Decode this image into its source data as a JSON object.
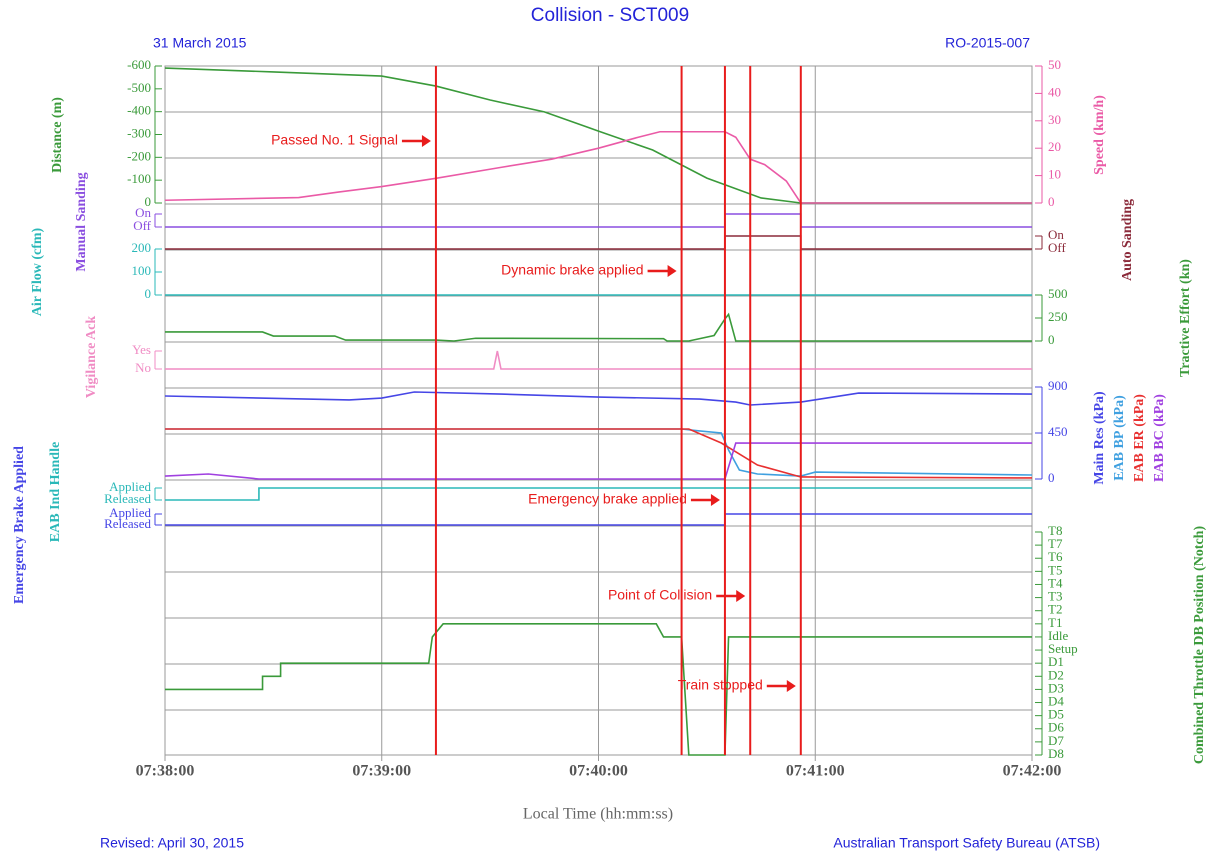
{
  "chart_data": {
    "type": "line",
    "title": "Collision - SCT009",
    "date": "31 March 2015",
    "report_id": "RO-2015-007",
    "xlabel": "Local Time (hh:mm:ss)",
    "footer_left": "Revised: April 30, 2015",
    "footer_right": "Australian Transport Safety Bureau (ATSB)",
    "grid": true,
    "xlim": [
      27480,
      27720
    ],
    "xticks": [
      {
        "value": 27480,
        "label": "07:38:00"
      },
      {
        "value": 27540,
        "label": "07:39:00"
      },
      {
        "value": 27600,
        "label": "07:40:00"
      },
      {
        "value": 27660,
        "label": "07:41:00"
      },
      {
        "value": 27720,
        "label": "07:42:00"
      }
    ],
    "event_color": "#e81c1c",
    "events": [
      {
        "x": 27555,
        "label": "Passed No. 1 Signal"
      },
      {
        "x": 27623,
        "label": "Dynamic brake applied"
      },
      {
        "x": 27635,
        "label": "Emergency brake applied"
      },
      {
        "x": 27642,
        "label": "Point of Collision"
      },
      {
        "x": 27656,
        "label": "Train stopped"
      }
    ],
    "panels": [
      {
        "ylabel": "Distance (m)",
        "ylim": [
          0,
          -600
        ],
        "yticks": [
          -600,
          -500,
          -400,
          -300,
          -200,
          -100,
          0
        ],
        "y2label": "Speed (km/h)",
        "y2lim": [
          0,
          50
        ],
        "y2ticks": [
          0,
          10,
          20,
          30,
          40,
          50
        ],
        "series": [
          {
            "color": "#3a9a3a",
            "x": [
              27480,
              27510,
              27540,
              27555,
              27570,
              27585,
              27600,
              27615,
              27630,
              27645,
              27656,
              27720
            ],
            "values": [
              -591,
              -574,
              -556,
              -512,
              -451,
              -399,
              -315,
              -232,
              -109,
              -22,
              0,
              0
            ]
          },
          {
            "color": "#ea5aa6",
            "axis": "y2",
            "x": [
              27480,
              27517,
              27528,
              27540,
              27555,
              27573,
              27587,
              27600,
              27611,
              27617,
              27635,
              27638,
              27642,
              27646,
              27652,
              27656,
              27720
            ],
            "values": [
              1,
              2,
              4,
              6,
              9,
              13,
              16,
              20,
              24,
              26,
              26,
              24,
              16,
              14,
              8,
              0,
              0
            ]
          }
        ]
      },
      {
        "ylabel": "Manual Sanding",
        "ylim": [
          0,
          1
        ],
        "yticks": [
          {
            "value": 1,
            "label": "On"
          },
          {
            "value": 0,
            "label": "Off"
          }
        ],
        "series": [
          {
            "color": "#8a4ee0",
            "x": [
              27480,
              27635,
              27635,
              27656,
              27656,
              27720
            ],
            "values": [
              0,
              0,
              1,
              1,
              0,
              0
            ]
          }
        ]
      },
      {
        "y2label": "Auto Sanding",
        "y2lim": [
          0,
          1
        ],
        "y2ticks": [
          {
            "value": 1,
            "label": "On"
          },
          {
            "value": 0,
            "label": "Off"
          }
        ],
        "series": [
          {
            "color": "#8b2a3a",
            "axis": "y2",
            "x": [
              27480,
              27635,
              27635,
              27656,
              27656,
              27720
            ],
            "values": [
              0,
              0,
              1,
              1,
              0,
              0
            ]
          }
        ]
      },
      {
        "ylabel": "Air Flow (cfm)",
        "ylim": [
          0,
          200
        ],
        "yticks": [
          0,
          100,
          200
        ],
        "series": [
          {
            "color": "#2ab8b8",
            "x": [
              27480,
              27720
            ],
            "values": [
              0,
              0
            ]
          }
        ]
      },
      {
        "y2label": "Tractive Effort (kn)",
        "y2lim": [
          0,
          500
        ],
        "y2ticks": [
          0,
          250,
          500
        ],
        "series": [
          {
            "color": "#3a9a3a",
            "axis": "y2",
            "x": [
              27480,
              27507,
              27510,
              27527,
              27530,
              27555,
              27560,
              27566,
              27618,
              27619,
              27625,
              27632,
              27635,
              27636,
              27638,
              27720
            ],
            "values": [
              98,
              98,
              54,
              54,
              10,
              10,
              0,
              30,
              25,
              0,
              0,
              60,
              240,
              290,
              0,
              0
            ]
          }
        ]
      },
      {
        "ylabel": "Vigilance Ack",
        "ylim": [
          0,
          1
        ],
        "yticks": [
          {
            "value": 1,
            "label": "Yes"
          },
          {
            "value": 0,
            "label": "No"
          }
        ],
        "series": [
          {
            "color": "#f08cc4",
            "x": [
              27480,
              27571,
              27572,
              27573,
              27720
            ],
            "values": [
              0,
              0,
              1,
              0,
              0
            ]
          }
        ]
      },
      {
        "y2lim": [
          0,
          900
        ],
        "y2ticks": [
          0,
          450,
          900
        ],
        "series": [
          {
            "name": "Main Res (kPa)",
            "color": "#4646e6",
            "axis": "y2",
            "x": [
              27480,
              27531,
              27540,
              27549,
              27573,
              27600,
              27628,
              27638,
              27642,
              27656,
              27672,
              27720
            ],
            "values": [
              812,
              773,
              792,
              851,
              831,
              802,
              782,
              753,
              724,
              753,
              841,
              831
            ]
          },
          {
            "name": "EAB BP (kPa)",
            "color": "#3fa0e0",
            "axis": "y2",
            "x": [
              27480,
              27623,
              27628,
              27634,
              27636,
              27639,
              27644,
              27656,
              27660,
              27720
            ],
            "values": [
              489,
              489,
              470,
              450,
              284,
              88,
              49,
              29,
              68,
              39
            ]
          },
          {
            "name": "EAB ER (kPa)",
            "color": "#e83030",
            "axis": "y2",
            "x": [
              27480,
              27625,
              27634,
              27644,
              27656,
              27720
            ],
            "values": [
              489,
              489,
              352,
              137,
              20,
              10
            ]
          },
          {
            "name": "EAB BC (kPa)",
            "color": "#a040e0",
            "axis": "y2",
            "x": [
              27480,
              27492,
              27506,
              27635,
              27638,
              27720
            ],
            "values": [
              29,
              49,
              0,
              0,
              352,
              352
            ]
          }
        ]
      },
      {
        "ylabel": "EAB Ind Handle",
        "ylim": [
          0,
          1
        ],
        "yticks": [
          {
            "value": 1,
            "label": "Applied"
          },
          {
            "value": 0,
            "label": "Released"
          }
        ],
        "series": [
          {
            "color": "#2ab8b8",
            "x": [
              27480,
              27506,
              27506,
              27720
            ],
            "values": [
              0,
              0,
              1,
              1
            ]
          }
        ]
      },
      {
        "ylabel": "Emergency Brake Applied",
        "ylim": [
          0,
          1
        ],
        "yticks": [
          {
            "value": 1,
            "label": "Applied"
          },
          {
            "value": 0,
            "label": "Released"
          }
        ],
        "series": [
          {
            "color": "#4646e6",
            "x": [
              27480,
              27635,
              27635,
              27720
            ],
            "values": [
              0,
              0,
              1,
              1
            ]
          }
        ]
      },
      {
        "y2label": "Combined Throttle DB Position (Notch)",
        "y2lim": [
          -9,
          8
        ],
        "y2ticks": [
          {
            "value": 8,
            "label": "T8"
          },
          {
            "value": 7,
            "label": "T7"
          },
          {
            "value": 6,
            "label": "T6"
          },
          {
            "value": 5,
            "label": "T5"
          },
          {
            "value": 4,
            "label": "T4"
          },
          {
            "value": 3,
            "label": "T3"
          },
          {
            "value": 2,
            "label": "T2"
          },
          {
            "value": 1,
            "label": "T1"
          },
          {
            "value": 0,
            "label": "Idle"
          },
          {
            "value": -1,
            "label": "Setup"
          },
          {
            "value": -2,
            "label": "D1"
          },
          {
            "value": -3,
            "label": "D2"
          },
          {
            "value": -4,
            "label": "D3"
          },
          {
            "value": -5,
            "label": "D4"
          },
          {
            "value": -6,
            "label": "D5"
          },
          {
            "value": -7,
            "label": "D6"
          },
          {
            "value": -8,
            "label": "D7"
          },
          {
            "value": -9,
            "label": "D8"
          }
        ],
        "series": [
          {
            "color": "#3a9a3a",
            "axis": "y2",
            "x": [
              27480,
              27507,
              27507,
              27512,
              27512,
              27553,
              27554,
              27557,
              27616,
              27618,
              27623,
              27625,
              27635,
              27636,
              27720
            ],
            "values": [
              -4,
              -4,
              -3,
              -3,
              -2,
              -2,
              0,
              1,
              1,
              0,
              0,
              -9,
              -9,
              0,
              0
            ]
          }
        ]
      }
    ]
  }
}
